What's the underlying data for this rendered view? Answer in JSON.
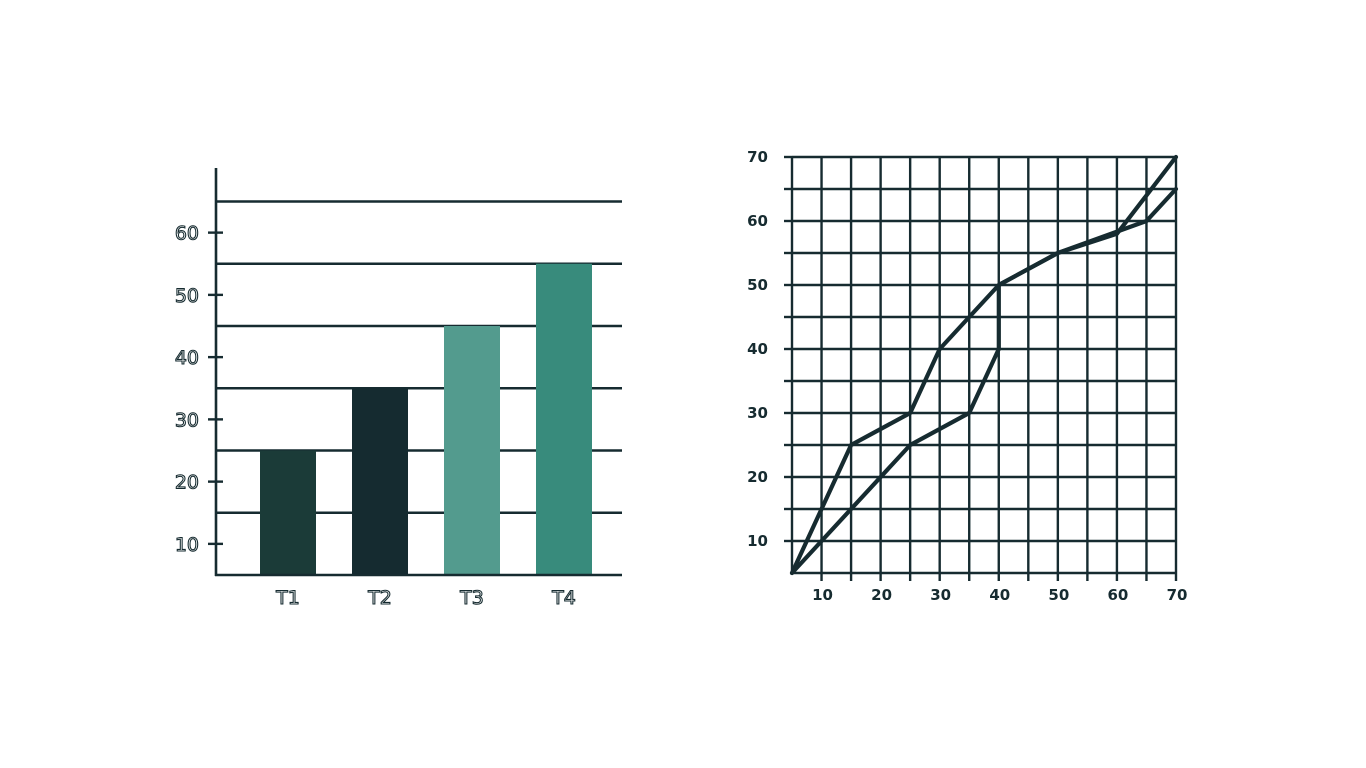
{
  "colors": {
    "ink": "#162b30",
    "bar_t1": "#1b3b38",
    "bar_t2": "#152b30",
    "bar_t3": "#539b8e",
    "bar_t4": "#388b7c",
    "background": "#ffffff"
  },
  "chart_data": [
    {
      "type": "bar",
      "categories": [
        "T1",
        "T2",
        "T3",
        "T4"
      ],
      "values": [
        25,
        35,
        45,
        55
      ],
      "yticks": [
        10,
        20,
        30,
        40,
        50,
        60
      ],
      "gridlines": [
        15,
        25,
        35,
        45,
        55,
        65
      ],
      "ylim": [
        5,
        70
      ],
      "grid": true,
      "title": "",
      "xlabel": "",
      "ylabel": ""
    },
    {
      "type": "line",
      "xlim": [
        5,
        70
      ],
      "ylim": [
        5,
        70
      ],
      "xticks": [
        10,
        20,
        30,
        40,
        50,
        60,
        70
      ],
      "yticks": [
        10,
        20,
        30,
        40,
        50,
        60,
        70
      ],
      "grid": true,
      "grid_step": 5,
      "series": [
        {
          "x": [
            5,
            15,
            25,
            30,
            40,
            50,
            60,
            70
          ],
          "y": [
            5,
            25,
            30,
            40,
            50,
            55,
            58,
            70
          ]
        },
        {
          "x": [
            5,
            25,
            35,
            40,
            40,
            50,
            65,
            70
          ],
          "y": [
            5,
            25,
            30,
            40,
            50,
            55,
            60,
            65
          ]
        }
      ],
      "title": "",
      "xlabel": "",
      "ylabel": ""
    }
  ]
}
